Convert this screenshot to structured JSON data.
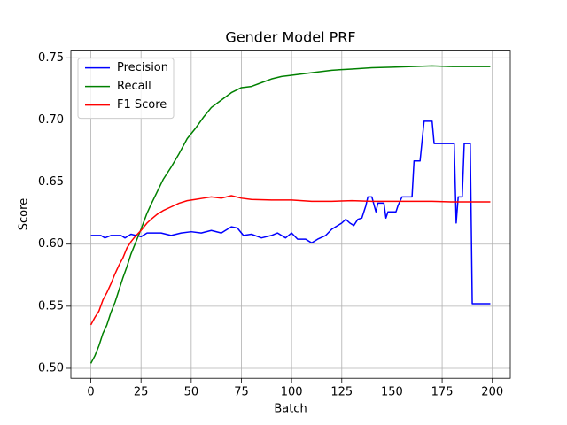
{
  "chart_data": {
    "type": "line",
    "title": "Gender Model PRF",
    "x_label": "Batch",
    "y_label": "Score",
    "xlim": [
      -9.95,
      208.95
    ],
    "xticks": [
      0,
      25,
      50,
      75,
      100,
      125,
      150,
      175,
      200
    ],
    "ylim": [
      0.492,
      0.7555
    ],
    "yticks": [
      {
        "value": 0.5,
        "label": "0.50"
      },
      {
        "value": 0.55,
        "label": "0.55"
      },
      {
        "value": 0.6,
        "label": "0.60"
      },
      {
        "value": 0.65,
        "label": "0.65"
      },
      {
        "value": 0.7,
        "label": "0.70"
      },
      {
        "value": 0.75,
        "label": "0.75"
      }
    ],
    "grid": true,
    "legend": "upper left",
    "series": [
      {
        "name": "Precision",
        "color": "#0000ff",
        "x": [
          0,
          5,
          7,
          10,
          15,
          17,
          20,
          25,
          28,
          35,
          40,
          45,
          50,
          55,
          60,
          65,
          70,
          73,
          76,
          80,
          85,
          90,
          93,
          97,
          100,
          103,
          107,
          110,
          113,
          117,
          120,
          125,
          127,
          129,
          131,
          133,
          135,
          137,
          138,
          140,
          142,
          143,
          146,
          147,
          148,
          152,
          153,
          155,
          160,
          161,
          164,
          166,
          170,
          171,
          181,
          182,
          183,
          185,
          186,
          189,
          190,
          199
        ],
        "values": [
          0.607,
          0.607,
          0.605,
          0.607,
          0.607,
          0.605,
          0.608,
          0.606,
          0.609,
          0.609,
          0.607,
          0.609,
          0.61,
          0.609,
          0.611,
          0.609,
          0.614,
          0.613,
          0.607,
          0.608,
          0.605,
          0.607,
          0.609,
          0.605,
          0.609,
          0.604,
          0.604,
          0.601,
          0.604,
          0.607,
          0.612,
          0.617,
          0.62,
          0.617,
          0.615,
          0.62,
          0.621,
          0.631,
          0.638,
          0.638,
          0.626,
          0.633,
          0.633,
          0.621,
          0.626,
          0.626,
          0.631,
          0.638,
          0.638,
          0.667,
          0.667,
          0.699,
          0.699,
          0.681,
          0.681,
          0.617,
          0.638,
          0.638,
          0.681,
          0.681,
          0.552,
          0.552
        ]
      },
      {
        "name": "Recall",
        "color": "#008000",
        "x": [
          0,
          2,
          4,
          6,
          8,
          10,
          12,
          14,
          16,
          18,
          20,
          22,
          25,
          28,
          30,
          33,
          36,
          40,
          44,
          48,
          52,
          56,
          60,
          65,
          70,
          75,
          80,
          85,
          90,
          95,
          100,
          110,
          120,
          130,
          140,
          150,
          160,
          170,
          180,
          190,
          199
        ],
        "values": [
          0.504,
          0.51,
          0.518,
          0.528,
          0.535,
          0.545,
          0.553,
          0.563,
          0.573,
          0.582,
          0.592,
          0.6,
          0.612,
          0.625,
          0.632,
          0.642,
          0.652,
          0.662,
          0.673,
          0.685,
          0.693,
          0.702,
          0.71,
          0.716,
          0.722,
          0.726,
          0.727,
          0.73,
          0.733,
          0.735,
          0.736,
          0.738,
          0.74,
          0.741,
          0.742,
          0.7425,
          0.743,
          0.7435,
          0.743,
          0.743,
          0.743
        ]
      },
      {
        "name": "F1 Score",
        "color": "#ff0000",
        "x": [
          0,
          2,
          4,
          6,
          8,
          10,
          12,
          14,
          16,
          18,
          20,
          22,
          25,
          28,
          30,
          33,
          36,
          40,
          44,
          48,
          52,
          56,
          60,
          65,
          70,
          75,
          80,
          90,
          100,
          110,
          120,
          130,
          140,
          150,
          160,
          170,
          180,
          190,
          199
        ],
        "values": [
          0.535,
          0.541,
          0.546,
          0.555,
          0.561,
          0.568,
          0.576,
          0.583,
          0.589,
          0.597,
          0.602,
          0.606,
          0.611,
          0.617,
          0.62,
          0.624,
          0.627,
          0.63,
          0.633,
          0.635,
          0.636,
          0.637,
          0.638,
          0.637,
          0.639,
          0.637,
          0.636,
          0.6355,
          0.6355,
          0.6345,
          0.6345,
          0.635,
          0.6345,
          0.6345,
          0.6345,
          0.6345,
          0.634,
          0.634,
          0.634
        ]
      }
    ]
  }
}
